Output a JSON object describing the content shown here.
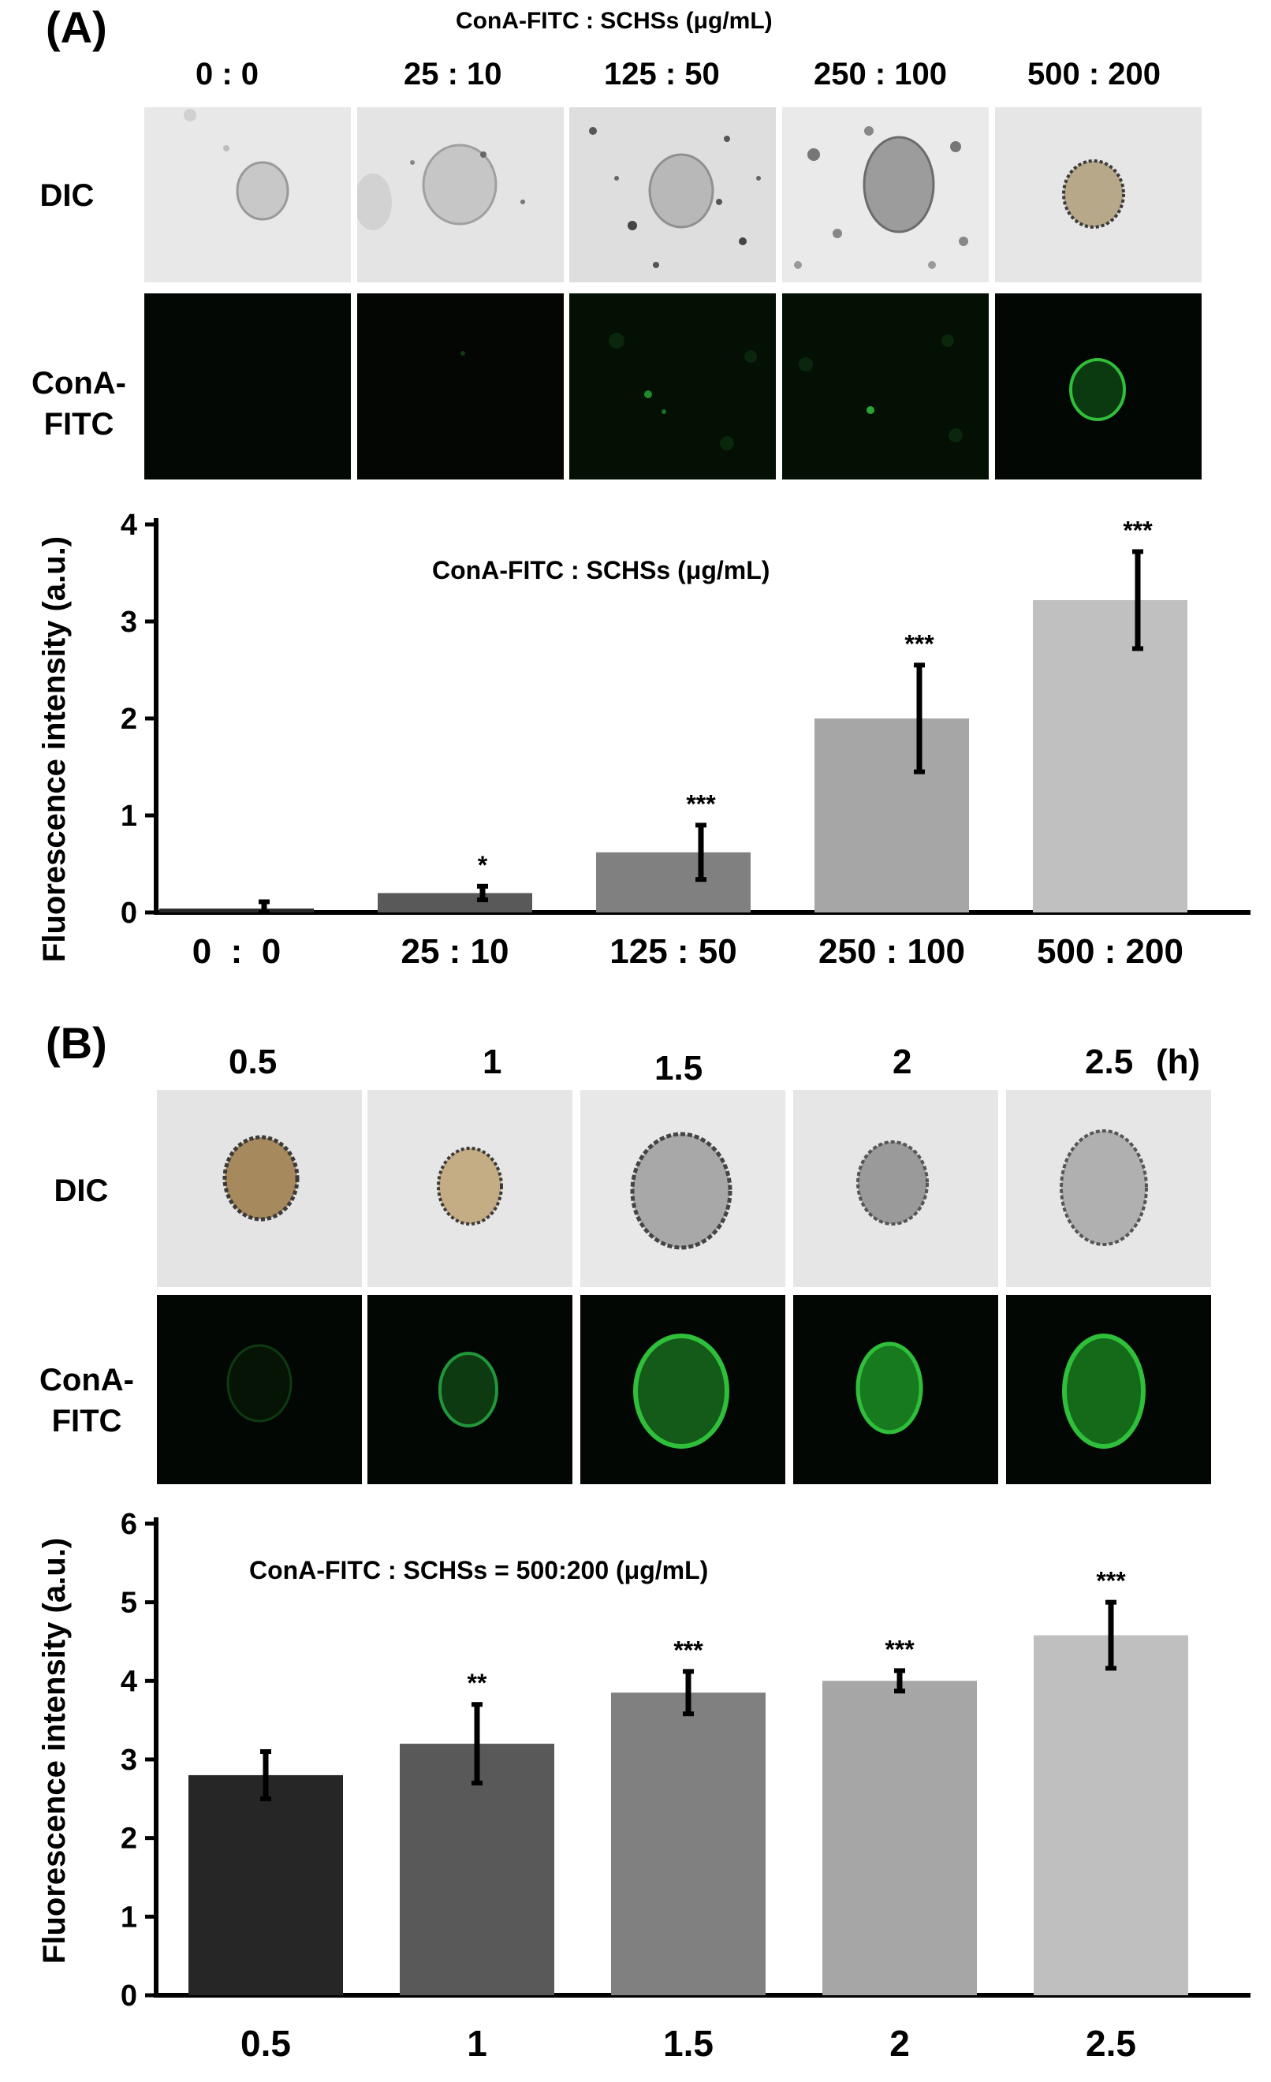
{
  "panel_a": {
    "letter": "(A)",
    "header": "ConA-FITC : SCHSs  (μg/mL)",
    "row_dic": "DIC",
    "row_fitc_1": "ConA-",
    "row_fitc_2": "FITC",
    "column_labels": [
      "0  :  0",
      "25 : 10",
      "125 : 50",
      "250 : 100",
      "500 : 200"
    ]
  },
  "panel_b": {
    "letter": "(B)",
    "row_dic": "DIC",
    "row_fitc_1": "ConA-",
    "row_fitc_2": "FITC",
    "column_labels": [
      "0.5",
      "1",
      "1.5",
      "2",
      "2.5"
    ],
    "unit_label": "(h)"
  },
  "colors": {
    "bars_a": [
      "#2b2b2b",
      "#595959",
      "#808080",
      "#a6a6a6",
      "#c0c0c0"
    ],
    "bars_b": [
      "#262626",
      "#595959",
      "#808080",
      "#a6a6a6",
      "#bfbfbf"
    ],
    "fluor_green": "#2fbf3a",
    "micro_bg": "#e6e6e6",
    "dark_bg": "#030703"
  },
  "chart_data": [
    {
      "type": "bar",
      "title": "ConA-FITC : SCHSs (μg/mL)",
      "xlabel": "",
      "ylabel": "Fluorescence intensity (a.u.)",
      "ylim": [
        0,
        4
      ],
      "yticks": [
        0,
        1,
        2,
        3,
        4
      ],
      "categories": [
        "0  :  0",
        "25 : 10",
        "125 : 50",
        "250 : 100",
        "500 : 200"
      ],
      "values": [
        0.04,
        0.2,
        0.62,
        2.0,
        3.22
      ],
      "errors": [
        0.07,
        0.07,
        0.28,
        0.55,
        0.5
      ],
      "significance": [
        "",
        "*",
        "***",
        "***",
        "***"
      ]
    },
    {
      "type": "bar",
      "title": "ConA-FITC : SCHSs = 500:200 (μg/mL)",
      "xlabel": "",
      "ylabel": "Fluorescence intensity (a.u.)",
      "ylim": [
        0,
        6
      ],
      "yticks": [
        0,
        1,
        2,
        3,
        4,
        5,
        6
      ],
      "categories": [
        "0.5",
        "1",
        "1.5",
        "2",
        "2.5"
      ],
      "values": [
        2.8,
        3.2,
        3.85,
        4.0,
        4.58
      ],
      "errors": [
        0.3,
        0.5,
        0.27,
        0.13,
        0.42
      ],
      "significance": [
        "",
        "**",
        "***",
        "***",
        "***"
      ]
    }
  ]
}
